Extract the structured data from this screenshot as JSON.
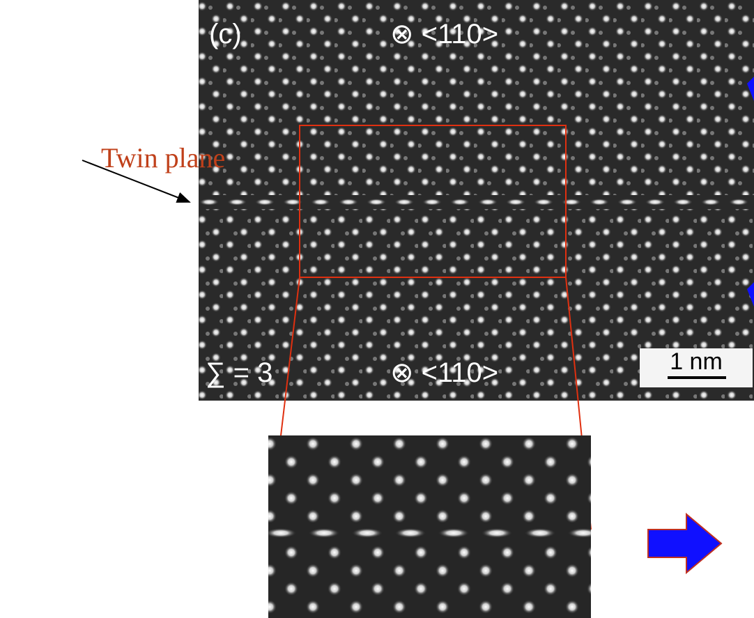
{
  "label_text": "Twin plane",
  "image": {
    "panel": "(c)",
    "top_direction": "⊗ <110>",
    "bottom_direction": "⊗ <110>",
    "sigma": "∑ = 3",
    "scale_bar": "1 nm"
  }
}
